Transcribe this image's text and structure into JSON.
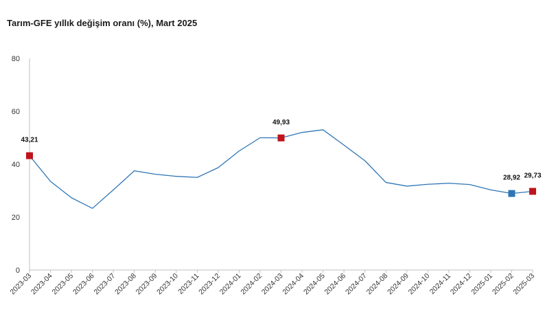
{
  "chart_data": {
    "type": "line",
    "title": "Tarım-GFE yıllık değişim oranı (%), Mart 2025",
    "xlabel": "",
    "ylabel": "",
    "ylim": [
      0,
      80
    ],
    "yticks": [
      0,
      20,
      40,
      60,
      80
    ],
    "grid": false,
    "legend": "none",
    "x": [
      "2023-03",
      "2023-04",
      "2023-05",
      "2023-06",
      "2023-07",
      "2023-08",
      "2023-09",
      "2023-10",
      "2023-11",
      "2023-12",
      "2024-01",
      "2024-02",
      "2024-03",
      "2024-04",
      "2024-05",
      "2024-06",
      "2024-07",
      "2024-08",
      "2024-09",
      "2024-10",
      "2024-11",
      "2024-12",
      "2025-01",
      "2025-02",
      "2025-03"
    ],
    "series": [
      {
        "values": [
          43.21,
          33.5,
          27.3,
          23.3,
          30.3,
          37.5,
          36.2,
          35.4,
          35.0,
          38.7,
          45.0,
          50.0,
          49.93,
          52.0,
          53.0,
          47.2,
          41.3,
          33.1,
          31.7,
          32.4,
          32.8,
          32.3,
          30.3,
          28.92,
          29.73
        ],
        "color": "#2e75b6"
      }
    ],
    "markers": [
      {
        "index": 0,
        "label": "43,21",
        "color": "#c0141c"
      },
      {
        "index": 12,
        "label": "49,93",
        "color": "#c0141c"
      },
      {
        "index": 23,
        "label": "28,92",
        "color": "#2e75b6"
      },
      {
        "index": 24,
        "label": "29,73",
        "color": "#c0141c"
      }
    ],
    "axis_color": "#bfbfbf"
  }
}
